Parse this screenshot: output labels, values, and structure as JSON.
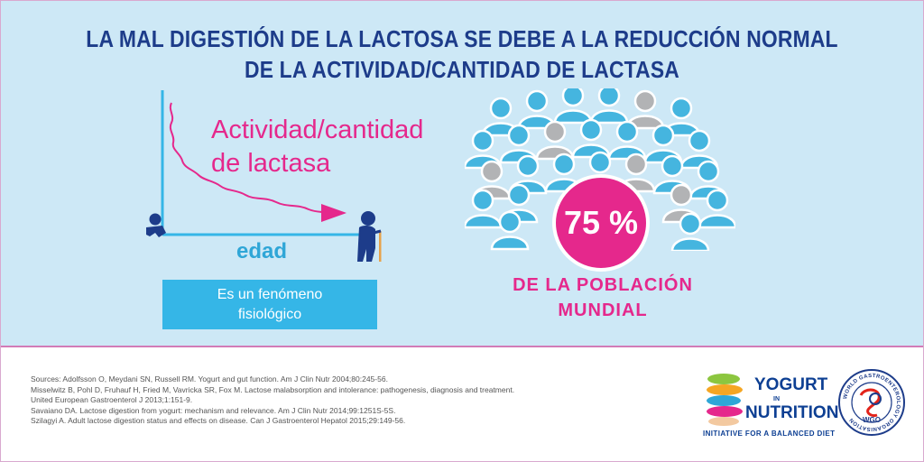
{
  "title": {
    "line1": "LA MAL DIGESTIÓN DE LA LACTOSA SE DEBE A LA REDUCCIÓN NORMAL",
    "line2": "DE LA ACTIVIDAD/CANTIDAD DE LACTASA"
  },
  "graph": {
    "curve_label_line1": "Actividad/cantidad",
    "curve_label_line2": "de lactasa",
    "x_label": "edad",
    "note_line1": "Es un fenómeno",
    "note_line2": "fisiológico",
    "icons": [
      "baby-icon",
      "elderly-person-icon"
    ]
  },
  "population": {
    "percent": "75 %",
    "caption_line1": "DE LA POBLACIÓN",
    "caption_line2": "MUNDIAL"
  },
  "sources": [
    "Sources: Adolfsson O, Meydani SN, Russell RM. Yogurt and gut function. Am J Clin Nutr 2004;80:245-56.",
    "Misselwitz B, Pohl D, Fruhauf H, Fried M, Vavricka SR, Fox M. Lactose malabsorption and intolerance: pathogenesis, diagnosis and treatment.",
    "United European Gastroenterol J 2013;1:151-9.",
    "Savaiano DA. Lactose digestion from yogurt: mechanism and relevance. Am J Clin Nutr 2014;99:1251S-5S.",
    "Szilagyi A. Adult lactose digestion status and effects on disease. Can J Gastroenterol Hepatol 2015;29:149-56."
  ],
  "logos": {
    "yogurt_line1": "YOGURT",
    "yogurt_in": "IN",
    "yogurt_line2": "NUTRITION",
    "tagline": "INITIATIVE FOR A BALANCED DIET",
    "wgo_ring": "WORLD GASTROENTEROLOGY ORGANISATION",
    "wgo_short": "WGO"
  },
  "colors": {
    "panel_bg": "#cde8f6",
    "title": "#1d3c8a",
    "accent_pink": "#e5288c",
    "accent_blue": "#35b6e7",
    "person_blue": "#45b5df",
    "person_gray": "#b2b3b5"
  }
}
